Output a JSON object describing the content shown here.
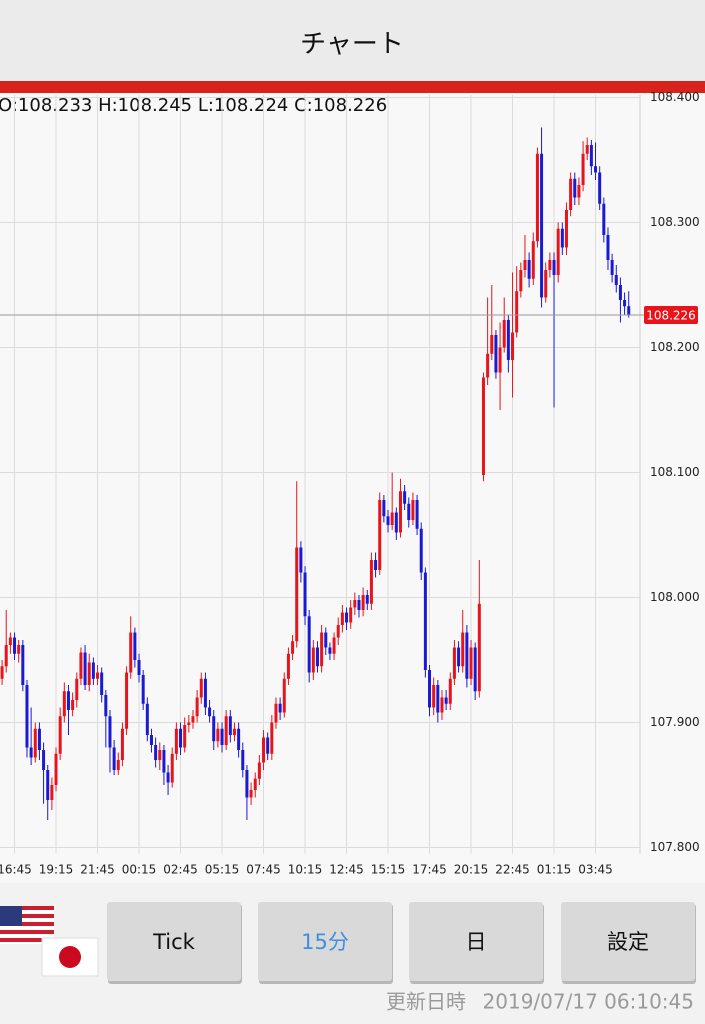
{
  "header": {
    "title": "チャート"
  },
  "chart_data": {
    "type": "candlestick",
    "ohlc_label": "O:108.233 H:108.245 L:108.224 C:108.226",
    "up_color": "#e8141b",
    "down_color": "#1a1ad2",
    "last_price": 108.226,
    "last_price_color": "#e8141b",
    "ylim": [
      107.795,
      108.402
    ],
    "yticks": [
      {
        "value": 108.4,
        "label": "108.400"
      },
      {
        "value": 108.3,
        "label": "108.300"
      },
      {
        "value": 108.2,
        "label": "108.200"
      },
      {
        "value": 108.1,
        "label": "108.100"
      },
      {
        "value": 108.0,
        "label": "108.000"
      },
      {
        "value": 107.9,
        "label": "107.900"
      },
      {
        "value": 107.8,
        "label": "107.800"
      }
    ],
    "grid": true,
    "categories": [
      null,
      null,
      null,
      "16:45",
      null,
      null,
      null,
      null,
      null,
      null,
      null,
      null,
      null,
      "19:15",
      null,
      null,
      null,
      null,
      null,
      null,
      null,
      null,
      null,
      "21:45",
      null,
      null,
      null,
      null,
      null,
      null,
      null,
      null,
      null,
      "00:15",
      null,
      null,
      null,
      null,
      null,
      null,
      null,
      null,
      null,
      "02:45",
      null,
      null,
      null,
      null,
      null,
      null,
      null,
      null,
      null,
      "05:15",
      null,
      null,
      null,
      null,
      null,
      null,
      null,
      null,
      null,
      "07:45",
      null,
      null,
      null,
      null,
      null,
      null,
      null,
      null,
      null,
      "10:15",
      null,
      null,
      null,
      null,
      null,
      null,
      null,
      null,
      null,
      "12:45",
      null,
      null,
      null,
      null,
      null,
      null,
      null,
      null,
      null,
      "15:15",
      null,
      null,
      null,
      null,
      null,
      null,
      null,
      null,
      null,
      "17:45",
      null,
      null,
      null,
      null,
      null,
      null,
      null,
      null,
      null,
      "20:15",
      null,
      null,
      null,
      null,
      null,
      null,
      null,
      null,
      null,
      "22:45",
      null,
      null,
      null,
      null,
      null,
      null,
      null,
      null,
      null,
      "01:15",
      null,
      null,
      null,
      null,
      null,
      null,
      null,
      null,
      null,
      "03:45",
      null,
      null,
      null,
      null,
      null,
      null,
      null,
      null
    ],
    "open": [
      107.935,
      107.945,
      107.962,
      107.968,
      107.955,
      107.962,
      107.93,
      107.88,
      107.872,
      107.895,
      107.878,
      107.862,
      107.838,
      107.85,
      107.875,
      107.905,
      107.925,
      107.91,
      107.918,
      107.935,
      107.956,
      107.93,
      107.948,
      107.935,
      107.94,
      107.922,
      107.905,
      107.88,
      107.862,
      107.87,
      107.895,
      107.94,
      107.972,
      107.95,
      107.938,
      107.915,
      107.89,
      107.882,
      107.87,
      107.878,
      107.86,
      107.852,
      107.875,
      107.895,
      107.88,
      107.898,
      107.9,
      107.905,
      107.92,
      107.935,
      107.912,
      107.905,
      107.885,
      107.895,
      107.882,
      107.905,
      107.89,
      107.895,
      107.878,
      107.862,
      107.84,
      107.846,
      107.855,
      107.868,
      107.888,
      107.875,
      107.9,
      107.915,
      107.908,
      107.935,
      107.955,
      107.965,
      108.04,
      108.02,
      107.985,
      107.94,
      107.96,
      107.945,
      107.972,
      107.96,
      107.955,
      107.968,
      107.978,
      107.988,
      107.98,
      107.992,
      107.998,
      107.99,
      108.002,
      107.995,
      108.03,
      108.022,
      108.078,
      108.065,
      108.058,
      108.068,
      108.052,
      108.085,
      108.075,
      108.062,
      108.078,
      108.055,
      108.02,
      107.942,
      107.912,
      107.93,
      107.908,
      107.92,
      107.915,
      107.935,
      107.96,
      107.945,
      107.972,
      107.935,
      107.96,
      107.925,
      108.098,
      108.176,
      108.195,
      108.21,
      108.18,
      108.2,
      108.222,
      108.19,
      108.212,
      108.245,
      108.262,
      108.27,
      108.255,
      108.285,
      108.355,
      108.24,
      108.262,
      108.27,
      108.258,
      108.295,
      108.28,
      108.31,
      108.335,
      108.32,
      108.33,
      108.355,
      108.362,
      108.345,
      108.34,
      108.315,
      108.29,
      108.27,
      108.258,
      108.25,
      108.238,
      108.233
    ],
    "high": [
      107.95,
      107.99,
      107.972,
      107.972,
      107.966,
      107.966,
      107.934,
      107.912,
      107.9,
      107.9,
      107.884,
      107.866,
      107.856,
      107.88,
      107.912,
      107.932,
      107.93,
      107.924,
      107.94,
      107.96,
      107.962,
      107.955,
      107.952,
      107.946,
      107.944,
      107.926,
      107.91,
      107.886,
      107.876,
      107.9,
      107.945,
      107.985,
      107.976,
      107.955,
      107.942,
      107.92,
      107.895,
      107.888,
      107.884,
      107.882,
      107.866,
      107.88,
      107.9,
      107.9,
      107.904,
      107.906,
      107.91,
      107.926,
      107.94,
      107.94,
      107.918,
      107.91,
      107.9,
      107.9,
      107.91,
      107.91,
      107.9,
      107.9,
      107.884,
      107.866,
      107.852,
      107.86,
      107.874,
      107.894,
      107.892,
      107.906,
      107.92,
      107.92,
      107.94,
      107.96,
      107.97,
      108.093,
      108.045,
      108.025,
      107.99,
      107.966,
      107.965,
      107.978,
      107.976,
      107.964,
      107.972,
      107.984,
      107.994,
      107.992,
      107.998,
      108.004,
      108.002,
      108.008,
      108.006,
      108.036,
      108.036,
      108.084,
      108.082,
      108.07,
      108.1,
      108.072,
      108.095,
      108.09,
      108.08,
      108.084,
      108.082,
      108.06,
      108.024,
      107.946,
      107.936,
      107.934,
      107.926,
      107.926,
      107.94,
      107.966,
      107.965,
      107.99,
      107.978,
      107.966,
      107.964,
      108.03,
      108.18,
      108.24,
      108.25,
      108.214,
      108.22,
      108.24,
      108.226,
      108.26,
      108.265,
      108.268,
      108.29,
      108.276,
      108.292,
      108.36,
      108.376,
      108.268,
      108.276,
      108.276,
      108.3,
      108.3,
      108.316,
      108.34,
      108.34,
      108.336,
      108.365,
      108.368,
      108.366,
      108.364,
      108.345,
      108.32,
      108.296,
      108.275,
      108.266,
      108.256,
      108.244,
      108.245
    ],
    "low": [
      107.93,
      107.94,
      107.955,
      107.95,
      107.948,
      107.925,
      107.872,
      107.866,
      107.868,
      107.87,
      107.835,
      107.822,
      107.83,
      107.845,
      107.87,
      107.9,
      107.89,
      107.905,
      107.912,
      107.93,
      107.926,
      107.925,
      107.93,
      107.93,
      107.916,
      107.88,
      107.86,
      107.858,
      107.858,
      107.865,
      107.89,
      107.935,
      107.944,
      107.932,
      107.91,
      107.885,
      107.876,
      107.864,
      107.862,
      107.85,
      107.842,
      107.848,
      107.87,
      107.874,
      107.876,
      107.892,
      107.895,
      107.9,
      107.915,
      107.906,
      107.9,
      107.878,
      107.88,
      107.876,
      107.878,
      107.884,
      107.885,
      107.872,
      107.856,
      107.822,
      107.834,
      107.84,
      107.85,
      107.862,
      107.87,
      107.87,
      107.895,
      107.902,
      107.904,
      107.93,
      107.95,
      107.96,
      108.012,
      107.978,
      107.932,
      107.934,
      107.94,
      107.94,
      107.954,
      107.95,
      107.95,
      107.962,
      107.972,
      107.974,
      107.975,
      107.986,
      107.984,
      107.985,
      107.99,
      107.99,
      108.016,
      108.018,
      108.06,
      108.052,
      108.054,
      108.046,
      108.048,
      108.07,
      108.056,
      108.058,
      108.05,
      108.014,
      107.936,
      107.905,
      107.906,
      107.9,
      107.902,
      107.91,
      107.91,
      107.93,
      107.94,
      107.94,
      107.928,
      107.93,
      107.918,
      107.92,
      108.093,
      108.17,
      108.19,
      108.175,
      108.15,
      108.196,
      108.18,
      108.16,
      108.208,
      108.24,
      108.256,
      108.248,
      108.25,
      108.28,
      108.232,
      108.236,
      108.256,
      108.152,
      108.252,
      108.274,
      108.274,
      108.305,
      108.314,
      108.314,
      108.325,
      108.35,
      108.338,
      108.334,
      108.31,
      108.284,
      108.262,
      108.252,
      108.244,
      108.22,
      108.226,
      108.224
    ],
    "close": [
      107.945,
      107.962,
      107.968,
      107.955,
      107.962,
      107.93,
      107.88,
      107.872,
      107.895,
      107.878,
      107.862,
      107.838,
      107.85,
      107.875,
      107.905,
      107.925,
      107.91,
      107.918,
      107.935,
      107.956,
      107.93,
      107.948,
      107.935,
      107.94,
      107.922,
      107.905,
      107.88,
      107.862,
      107.87,
      107.895,
      107.94,
      107.972,
      107.95,
      107.938,
      107.915,
      107.89,
      107.882,
      107.87,
      107.878,
      107.86,
      107.852,
      107.875,
      107.895,
      107.88,
      107.898,
      107.9,
      107.905,
      107.92,
      107.935,
      107.912,
      107.905,
      107.885,
      107.895,
      107.882,
      107.905,
      107.89,
      107.895,
      107.878,
      107.862,
      107.84,
      107.846,
      107.855,
      107.868,
      107.888,
      107.875,
      107.9,
      107.915,
      107.908,
      107.935,
      107.955,
      107.965,
      108.04,
      108.02,
      107.985,
      107.94,
      107.96,
      107.945,
      107.972,
      107.96,
      107.955,
      107.968,
      107.978,
      107.988,
      107.98,
      107.992,
      107.998,
      107.99,
      108.002,
      107.995,
      108.03,
      108.022,
      108.078,
      108.065,
      108.058,
      108.068,
      108.052,
      108.085,
      108.075,
      108.062,
      108.078,
      108.055,
      108.02,
      107.942,
      107.912,
      107.93,
      107.908,
      107.92,
      107.915,
      107.935,
      107.96,
      107.945,
      107.972,
      107.935,
      107.96,
      107.925,
      107.995,
      108.176,
      108.195,
      108.21,
      108.18,
      108.2,
      108.222,
      108.19,
      108.212,
      108.245,
      108.262,
      108.27,
      108.255,
      108.285,
      108.355,
      108.24,
      108.262,
      108.27,
      108.258,
      108.295,
      108.28,
      108.31,
      108.335,
      108.32,
      108.33,
      108.355,
      108.362,
      108.345,
      108.34,
      108.315,
      108.29,
      108.27,
      108.258,
      108.25,
      108.238,
      108.233,
      108.226
    ]
  },
  "toolbar": {
    "buttons": [
      "Tick",
      "15分",
      "日",
      "設定"
    ],
    "selected": 1
  },
  "footer": {
    "updated_label": "更新日時",
    "updated_at": "2019/07/17 06:10:45"
  }
}
